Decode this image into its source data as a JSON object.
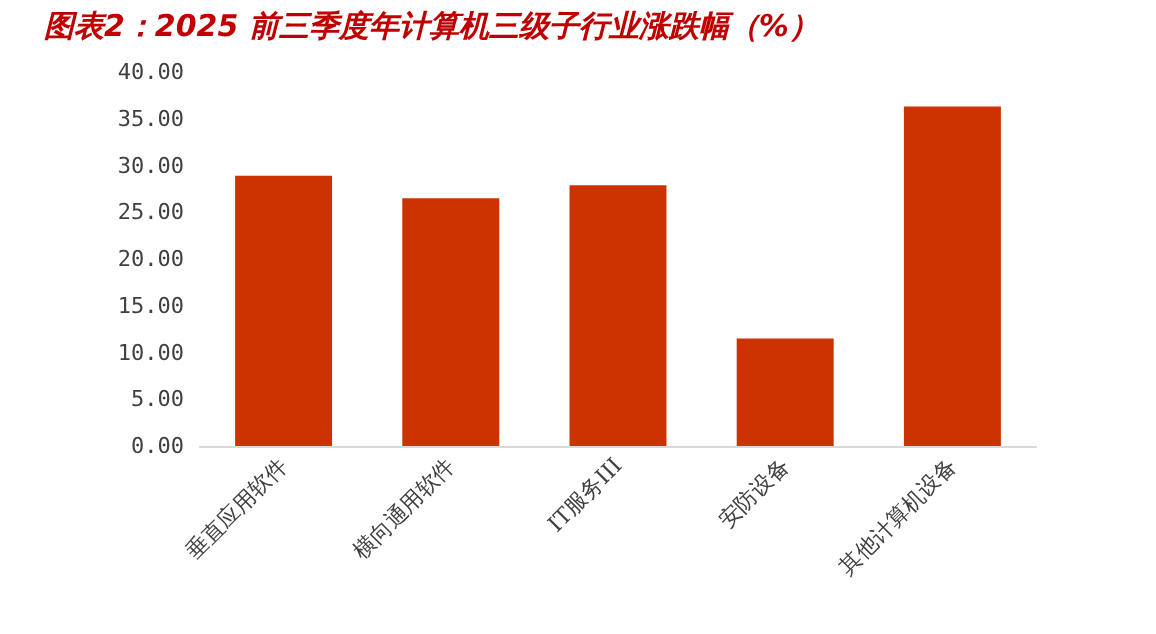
{
  "chart_data": {
    "type": "bar",
    "title": "图表2：2025 前三季度年计算机三级子行业涨跌幅（%）",
    "categories": [
      "垂直应用软件",
      "横向通用软件",
      "IT服务III",
      "安防设备",
      "其他计算机设备"
    ],
    "values": [
      28.9,
      26.5,
      27.9,
      11.5,
      36.3
    ],
    "color": "#cc3300",
    "ylim": [
      0,
      40
    ],
    "yticks": [
      {
        "value": 0,
        "label": "0.00"
      },
      {
        "value": 5,
        "label": "5.00"
      },
      {
        "value": 10,
        "label": "10.00"
      },
      {
        "value": 15,
        "label": "15.00"
      },
      {
        "value": 20,
        "label": "20.00"
      },
      {
        "value": 25,
        "label": "25.00"
      },
      {
        "value": 30,
        "label": "30.00"
      },
      {
        "value": 35,
        "label": "35.00"
      },
      {
        "value": 40,
        "label": "40.00"
      }
    ],
    "grid": false
  }
}
